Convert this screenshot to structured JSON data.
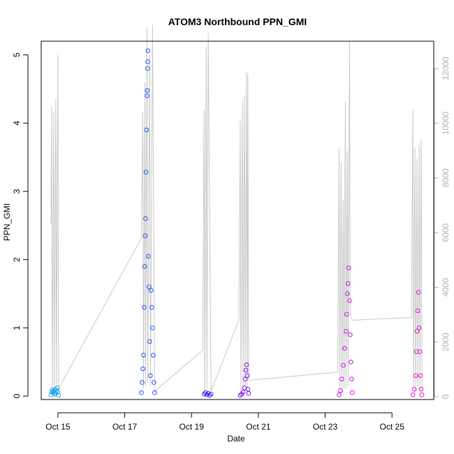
{
  "chart_data": {
    "type": "scatter",
    "title": "ATOM3 Northbound PPN_GMI",
    "xlabel": "Date",
    "ylabel": "PPN_GMI",
    "x_ticks": [
      "Oct 15",
      "Oct 17",
      "Oct 19",
      "Oct 21",
      "Oct 23",
      "Oct 25"
    ],
    "x_range": [
      "2024-10-14T12:00",
      "2024-10-26T06:00"
    ],
    "ylim": [
      -0.05,
      5.2
    ],
    "y_ticks": [
      "0",
      "1",
      "2",
      "3",
      "4",
      "5"
    ],
    "y_right_ticks": [
      "0",
      "2000",
      "4000",
      "6000",
      "8000",
      "10000",
      "12000"
    ],
    "y_right_lim": [
      -100,
      13000
    ],
    "box": true,
    "colors": {
      "secondary_line": "#c8c8c8",
      "points_gradient": [
        "#1aa3ff",
        "#1f4fff",
        "#3b1fff",
        "#7a00ff",
        "#cc00ff",
        "#ff00cc"
      ]
    },
    "series": [
      {
        "color": "#17a2e6",
        "points": [
          {
            "x": "2024-10-14T19:00",
            "y": 0.02
          },
          {
            "x": "2024-10-14T19:30",
            "y": 0.06
          },
          {
            "x": "2024-10-14T20:00",
            "y": 0.09
          },
          {
            "x": "2024-10-14T20:30",
            "y": 0.05
          },
          {
            "x": "2024-10-14T21:00",
            "y": 0.07
          },
          {
            "x": "2024-10-14T21:30",
            "y": 0.03
          },
          {
            "x": "2024-10-14T22:00",
            "y": 0.1
          },
          {
            "x": "2024-10-14T22:30",
            "y": 0.04
          },
          {
            "x": "2024-10-14T23:00",
            "y": 0.08
          },
          {
            "x": "2024-10-14T23:30",
            "y": 0.12
          },
          {
            "x": "2024-10-15T00:00",
            "y": 0.06
          },
          {
            "x": "2024-10-15T00:30",
            "y": 0.01
          }
        ]
      },
      {
        "color": "#1f55f0",
        "points": [
          {
            "x": "2024-10-17T12:00",
            "y": 0.05
          },
          {
            "x": "2024-10-17T12:30",
            "y": 0.2
          },
          {
            "x": "2024-10-17T13:00",
            "y": 0.4
          },
          {
            "x": "2024-10-17T13:30",
            "y": 0.6
          },
          {
            "x": "2024-10-17T14:00",
            "y": 1.3
          },
          {
            "x": "2024-10-17T14:20",
            "y": 1.9
          },
          {
            "x": "2024-10-17T14:40",
            "y": 2.35
          },
          {
            "x": "2024-10-17T15:00",
            "y": 2.6
          },
          {
            "x": "2024-10-17T15:20",
            "y": 3.28
          },
          {
            "x": "2024-10-17T15:40",
            "y": 3.9
          },
          {
            "x": "2024-10-17T16:00",
            "y": 4.4
          },
          {
            "x": "2024-10-17T16:10",
            "y": 4.48
          },
          {
            "x": "2024-10-17T16:20",
            "y": 4.8
          },
          {
            "x": "2024-10-17T16:30",
            "y": 4.9
          },
          {
            "x": "2024-10-17T16:40",
            "y": 5.06
          },
          {
            "x": "2024-10-17T17:00",
            "y": 2.05
          },
          {
            "x": "2024-10-17T17:30",
            "y": 1.6
          },
          {
            "x": "2024-10-17T18:00",
            "y": 0.8
          },
          {
            "x": "2024-10-17T18:30",
            "y": 0.3
          },
          {
            "x": "2024-10-17T19:00",
            "y": 1.55
          },
          {
            "x": "2024-10-17T19:30",
            "y": 1.3
          },
          {
            "x": "2024-10-17T20:00",
            "y": 1.0
          },
          {
            "x": "2024-10-17T20:30",
            "y": 0.6
          },
          {
            "x": "2024-10-17T21:00",
            "y": 0.2
          },
          {
            "x": "2024-10-17T21:30",
            "y": 0.05
          }
        ]
      },
      {
        "color": "#3a1fe0",
        "points": [
          {
            "x": "2024-10-19T09:00",
            "y": 0.03
          },
          {
            "x": "2024-10-19T10:00",
            "y": 0.05
          },
          {
            "x": "2024-10-19T11:00",
            "y": 0.02
          },
          {
            "x": "2024-10-19T12:00",
            "y": 0.04
          },
          {
            "x": "2024-10-19T13:00",
            "y": 0.01
          },
          {
            "x": "2024-10-19T14:00",
            "y": 0.03
          }
        ]
      },
      {
        "color": "#7a10e8",
        "points": [
          {
            "x": "2024-10-20T11:00",
            "y": 0.01
          },
          {
            "x": "2024-10-20T12:00",
            "y": 0.03
          },
          {
            "x": "2024-10-20T13:00",
            "y": 0.06
          },
          {
            "x": "2024-10-20T14:00",
            "y": 0.12
          },
          {
            "x": "2024-10-20T14:30",
            "y": 0.25
          },
          {
            "x": "2024-10-20T15:00",
            "y": 0.38
          },
          {
            "x": "2024-10-20T15:30",
            "y": 0.46
          },
          {
            "x": "2024-10-20T16:00",
            "y": 0.3
          },
          {
            "x": "2024-10-20T16:30",
            "y": 0.1
          },
          {
            "x": "2024-10-20T17:00",
            "y": 0.04
          }
        ]
      },
      {
        "color": "#cc10e0",
        "points": [
          {
            "x": "2024-10-23T10:00",
            "y": 0.02
          },
          {
            "x": "2024-10-23T11:00",
            "y": 0.08
          },
          {
            "x": "2024-10-23T12:00",
            "y": 0.25
          },
          {
            "x": "2024-10-23T13:00",
            "y": 0.45
          },
          {
            "x": "2024-10-23T14:00",
            "y": 0.7
          },
          {
            "x": "2024-10-23T15:00",
            "y": 0.95
          },
          {
            "x": "2024-10-23T15:30",
            "y": 1.2
          },
          {
            "x": "2024-10-23T16:00",
            "y": 1.5
          },
          {
            "x": "2024-10-23T16:30",
            "y": 1.65
          },
          {
            "x": "2024-10-23T17:00",
            "y": 1.88
          },
          {
            "x": "2024-10-23T17:30",
            "y": 1.4
          },
          {
            "x": "2024-10-23T18:00",
            "y": 0.9
          },
          {
            "x": "2024-10-23T18:30",
            "y": 0.5
          },
          {
            "x": "2024-10-23T19:00",
            "y": 0.25
          },
          {
            "x": "2024-10-23T19:30",
            "y": 0.05
          }
        ]
      },
      {
        "color": "#f010c8",
        "points": [
          {
            "x": "2024-10-25T15:00",
            "y": 0.02
          },
          {
            "x": "2024-10-25T16:00",
            "y": 0.1
          },
          {
            "x": "2024-10-25T17:00",
            "y": 0.3
          },
          {
            "x": "2024-10-25T17:30",
            "y": 0.65
          },
          {
            "x": "2024-10-25T18:00",
            "y": 0.95
          },
          {
            "x": "2024-10-25T18:30",
            "y": 1.25
          },
          {
            "x": "2024-10-25T19:00",
            "y": 1.52
          },
          {
            "x": "2024-10-25T19:30",
            "y": 1.0
          },
          {
            "x": "2024-10-25T20:00",
            "y": 0.65
          },
          {
            "x": "2024-10-25T20:30",
            "y": 0.3
          },
          {
            "x": "2024-10-25T21:00",
            "y": 0.1
          },
          {
            "x": "2024-10-25T21:30",
            "y": 0.02
          }
        ]
      }
    ],
    "secondary_series": {
      "color": "#c8c8c8",
      "points": [
        {
          "x": "2024-10-14T19:00",
          "y": 6300
        },
        {
          "x": "2024-10-14T19:30",
          "y": 10600
        },
        {
          "x": "2024-10-14T20:00",
          "y": 200
        },
        {
          "x": "2024-10-14T21:00",
          "y": 10400
        },
        {
          "x": "2024-10-14T21:30",
          "y": 300
        },
        {
          "x": "2024-10-14T22:30",
          "y": 10900
        },
        {
          "x": "2024-10-14T23:00",
          "y": 400
        },
        {
          "x": "2024-10-15T00:00",
          "y": 12500
        },
        {
          "x": "2024-10-15T00:30",
          "y": 300
        },
        {
          "x": "2024-10-17T12:00",
          "y": 5800
        },
        {
          "x": "2024-10-17T13:00",
          "y": 10400
        },
        {
          "x": "2024-10-17T13:30",
          "y": 300
        },
        {
          "x": "2024-10-17T14:30",
          "y": 11500
        },
        {
          "x": "2024-10-17T15:00",
          "y": 400
        },
        {
          "x": "2024-10-17T16:00",
          "y": 13500
        },
        {
          "x": "2024-10-17T16:30",
          "y": 500
        },
        {
          "x": "2024-10-17T18:00",
          "y": 12500
        },
        {
          "x": "2024-10-17T18:30",
          "y": 400
        },
        {
          "x": "2024-10-17T20:00",
          "y": 13600
        },
        {
          "x": "2024-10-17T21:30",
          "y": 200
        },
        {
          "x": "2024-10-19T08:00",
          "y": 1700
        },
        {
          "x": "2024-10-19T09:00",
          "y": 10500
        },
        {
          "x": "2024-10-19T09:30",
          "y": 200
        },
        {
          "x": "2024-10-19T10:30",
          "y": 12800
        },
        {
          "x": "2024-10-19T11:00",
          "y": 300
        },
        {
          "x": "2024-10-19T12:00",
          "y": 13300
        },
        {
          "x": "2024-10-19T14:00",
          "y": 200
        },
        {
          "x": "2024-10-20T10:00",
          "y": 2800
        },
        {
          "x": "2024-10-20T11:00",
          "y": 10100
        },
        {
          "x": "2024-10-20T11:30",
          "y": 200
        },
        {
          "x": "2024-10-20T12:30",
          "y": 10800
        },
        {
          "x": "2024-10-20T13:00",
          "y": 300
        },
        {
          "x": "2024-10-20T14:00",
          "y": 11000
        },
        {
          "x": "2024-10-20T14:30",
          "y": 400
        },
        {
          "x": "2024-10-20T15:30",
          "y": 11900
        },
        {
          "x": "2024-10-20T16:00",
          "y": 200
        },
        {
          "x": "2024-10-20T16:30",
          "y": 11800
        },
        {
          "x": "2024-10-20T17:00",
          "y": 600
        },
        {
          "x": "2024-10-23T09:00",
          "y": 900
        },
        {
          "x": "2024-10-23T10:00",
          "y": 9100
        },
        {
          "x": "2024-10-23T10:30",
          "y": 300
        },
        {
          "x": "2024-10-23T11:30",
          "y": 8600
        },
        {
          "x": "2024-10-23T12:00",
          "y": 200
        },
        {
          "x": "2024-10-23T13:00",
          "y": 7200
        },
        {
          "x": "2024-10-23T13:30",
          "y": 300
        },
        {
          "x": "2024-10-23T14:30",
          "y": 10800
        },
        {
          "x": "2024-10-23T15:00",
          "y": 300
        },
        {
          "x": "2024-10-23T16:00",
          "y": 9000
        },
        {
          "x": "2024-10-23T16:30",
          "y": 400
        },
        {
          "x": "2024-10-23T17:30",
          "y": 13000
        },
        {
          "x": "2024-10-23T18:00",
          "y": 3000
        },
        {
          "x": "2024-10-23T19:30",
          "y": 2800
        },
        {
          "x": "2024-10-25T14:00",
          "y": 2900
        },
        {
          "x": "2024-10-25T15:00",
          "y": 10500
        },
        {
          "x": "2024-10-25T15:30",
          "y": 300
        },
        {
          "x": "2024-10-25T16:30",
          "y": 9100
        },
        {
          "x": "2024-10-25T17:00",
          "y": 200
        },
        {
          "x": "2024-10-25T18:00",
          "y": 8700
        },
        {
          "x": "2024-10-25T18:30",
          "y": 300
        },
        {
          "x": "2024-10-25T19:30",
          "y": 9200
        },
        {
          "x": "2024-10-25T20:00",
          "y": 200
        },
        {
          "x": "2024-10-25T21:00",
          "y": 9400
        },
        {
          "x": "2024-10-25T21:30",
          "y": 300
        }
      ]
    }
  }
}
